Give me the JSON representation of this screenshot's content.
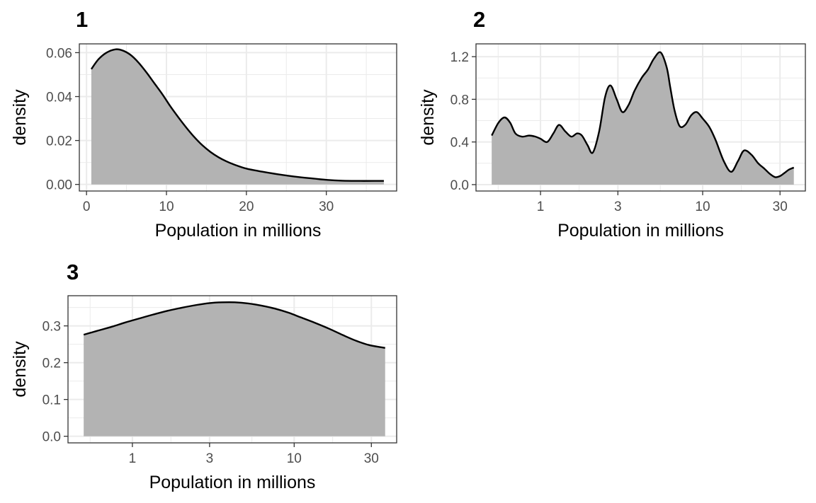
{
  "chart_data": [
    {
      "type": "area",
      "title": "1",
      "xlabel": "Population in millions",
      "ylabel": "density",
      "x_scale": "linear",
      "xlim": [
        -0.9,
        38.8
      ],
      "ylim": [
        -0.003,
        0.064
      ],
      "x_ticks": [
        0,
        10,
        20,
        30
      ],
      "x_tick_labels": [
        "0",
        "10",
        "20",
        "30"
      ],
      "x_minor_ticks": [
        5,
        15,
        25,
        35
      ],
      "y_ticks": [
        0,
        0.02,
        0.04,
        0.06
      ],
      "y_tick_labels": [
        "0.00",
        "0.02",
        "0.04",
        "0.06"
      ],
      "y_minor_ticks": [
        0.01,
        0.03,
        0.05
      ],
      "grid": true,
      "fill_color": "#b3b3b3",
      "line_color": "#000000",
      "points": {
        "x": [
          0.6,
          1.5,
          2.5,
          3.6,
          4.5,
          5.5,
          6.5,
          7.5,
          8.5,
          9.5,
          10.5,
          11.5,
          12.5,
          13.5,
          14.5,
          15.5,
          16.5,
          17.5,
          18.5,
          20,
          22,
          24,
          26,
          28,
          30,
          32,
          34,
          36,
          37.2
        ],
        "y": [
          0.0525,
          0.057,
          0.06,
          0.0615,
          0.061,
          0.059,
          0.0555,
          0.051,
          0.046,
          0.041,
          0.0355,
          0.0305,
          0.0258,
          0.0215,
          0.0178,
          0.0148,
          0.0124,
          0.0105,
          0.009,
          0.0072,
          0.0058,
          0.0046,
          0.0036,
          0.0028,
          0.0021,
          0.0017,
          0.0016,
          0.0016,
          0.0016
        ]
      }
    },
    {
      "type": "area",
      "title": "2",
      "xlabel": "Population in millions",
      "ylabel": "density",
      "x_scale": "log10",
      "xlim": [
        0.4,
        43
      ],
      "ylim": [
        -0.06,
        1.32
      ],
      "x_ticks": [
        1,
        3,
        10,
        30
      ],
      "x_tick_labels": [
        "1",
        "3",
        "10",
        "30"
      ],
      "x_minor_ticks": [
        0.548,
        1.73,
        5.48,
        17.3
      ],
      "y_ticks": [
        0,
        0.4,
        0.8,
        1.2
      ],
      "y_tick_labels": [
        "0.0",
        "0.4",
        "0.8",
        "1.2"
      ],
      "y_minor_ticks": [
        0.2,
        0.6,
        1.0
      ],
      "grid": true,
      "fill_color": "#b3b3b3",
      "line_color": "#000000",
      "points": {
        "x": [
          0.5,
          0.55,
          0.6,
          0.65,
          0.7,
          0.77,
          0.85,
          0.93,
          1.0,
          1.1,
          1.2,
          1.3,
          1.42,
          1.55,
          1.68,
          1.8,
          1.95,
          2.1,
          2.3,
          2.5,
          2.7,
          2.95,
          3.2,
          3.5,
          3.8,
          4.2,
          4.6,
          5.0,
          5.5,
          6.0,
          6.3,
          6.7,
          7.2,
          7.8,
          8.5,
          9.2,
          10.0,
          11.0,
          12.0,
          13.5,
          15.0,
          16.5,
          18.0,
          20.0,
          22.0,
          24.0,
          26.0,
          28.0,
          30.0,
          32.0,
          34.0,
          36.5
        ],
        "y": [
          0.46,
          0.58,
          0.63,
          0.58,
          0.48,
          0.45,
          0.46,
          0.45,
          0.43,
          0.4,
          0.48,
          0.56,
          0.5,
          0.45,
          0.48,
          0.46,
          0.37,
          0.3,
          0.5,
          0.82,
          0.93,
          0.8,
          0.68,
          0.75,
          0.88,
          1.0,
          1.08,
          1.18,
          1.24,
          1.1,
          0.92,
          0.7,
          0.55,
          0.56,
          0.65,
          0.68,
          0.62,
          0.54,
          0.42,
          0.22,
          0.12,
          0.22,
          0.32,
          0.28,
          0.2,
          0.15,
          0.1,
          0.07,
          0.08,
          0.11,
          0.14,
          0.16
        ]
      }
    },
    {
      "type": "area",
      "title": "3",
      "xlabel": "Population in millions",
      "ylabel": "density",
      "x_scale": "log10",
      "xlim": [
        0.4,
        43
      ],
      "ylim": [
        -0.018,
        0.382
      ],
      "x_ticks": [
        1,
        3,
        10,
        30
      ],
      "x_tick_labels": [
        "1",
        "3",
        "10",
        "30"
      ],
      "x_minor_ticks": [
        0.548,
        1.73,
        5.48,
        17.3
      ],
      "y_ticks": [
        0,
        0.1,
        0.2,
        0.3
      ],
      "y_tick_labels": [
        "0.0",
        "0.1",
        "0.2",
        "0.3"
      ],
      "y_minor_ticks": [
        0.05,
        0.15,
        0.25,
        0.35
      ],
      "grid": true,
      "fill_color": "#b3b3b3",
      "line_color": "#000000",
      "points": {
        "x": [
          0.5,
          0.6,
          0.75,
          0.9,
          1.1,
          1.35,
          1.65,
          2.0,
          2.5,
          3.0,
          3.6,
          4.3,
          5.2,
          6.3,
          7.6,
          9.2,
          11.0,
          13.5,
          16.5,
          20.0,
          24.0,
          29.0,
          36.5
        ],
        "y": [
          0.276,
          0.286,
          0.298,
          0.309,
          0.32,
          0.331,
          0.341,
          0.349,
          0.357,
          0.362,
          0.364,
          0.364,
          0.361,
          0.355,
          0.347,
          0.336,
          0.323,
          0.308,
          0.292,
          0.275,
          0.26,
          0.248,
          0.24
        ]
      }
    }
  ]
}
